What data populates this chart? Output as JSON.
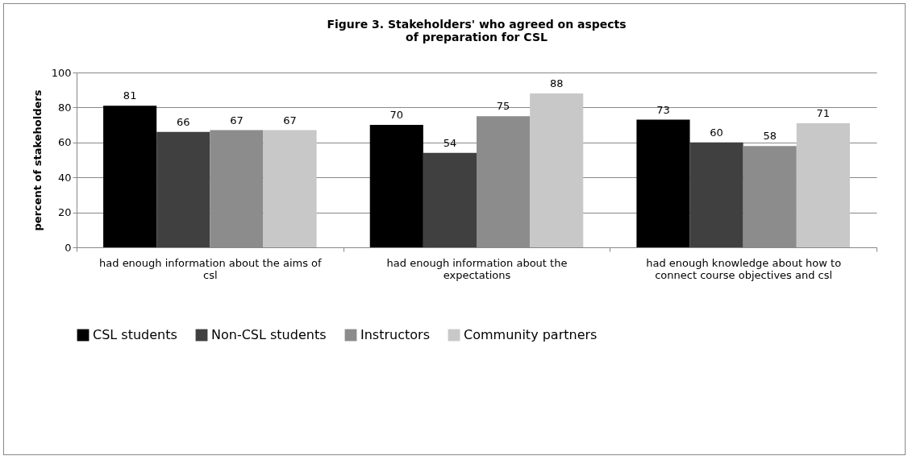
{
  "chart_data": {
    "type": "bar",
    "title": "Figure 3. Stakeholders' who agreed on aspects of preparation for CSL",
    "ylabel": "percent of stakeholders",
    "categories": [
      "had enough information about the aims of csl",
      "had enough information about the expectations",
      "had enough knowledge about how to connect course objectives and csl"
    ],
    "series": [
      {
        "name": "CSL students",
        "color": "#000000",
        "values": [
          81,
          70,
          73
        ]
      },
      {
        "name": "Non-CSL students",
        "color": "#404040",
        "values": [
          66,
          54,
          60
        ]
      },
      {
        "name": "Instructors",
        "color": "#8c8c8c",
        "values": [
          67,
          75,
          58
        ]
      },
      {
        "name": "Community partners",
        "color": "#c8c8c8",
        "values": [
          67,
          88,
          71
        ]
      }
    ],
    "ylim": [
      0,
      100
    ],
    "yticks": [
      0,
      20,
      40,
      60,
      80,
      100
    ],
    "grid": "y",
    "legend": "bottom",
    "data_labels": true
  }
}
